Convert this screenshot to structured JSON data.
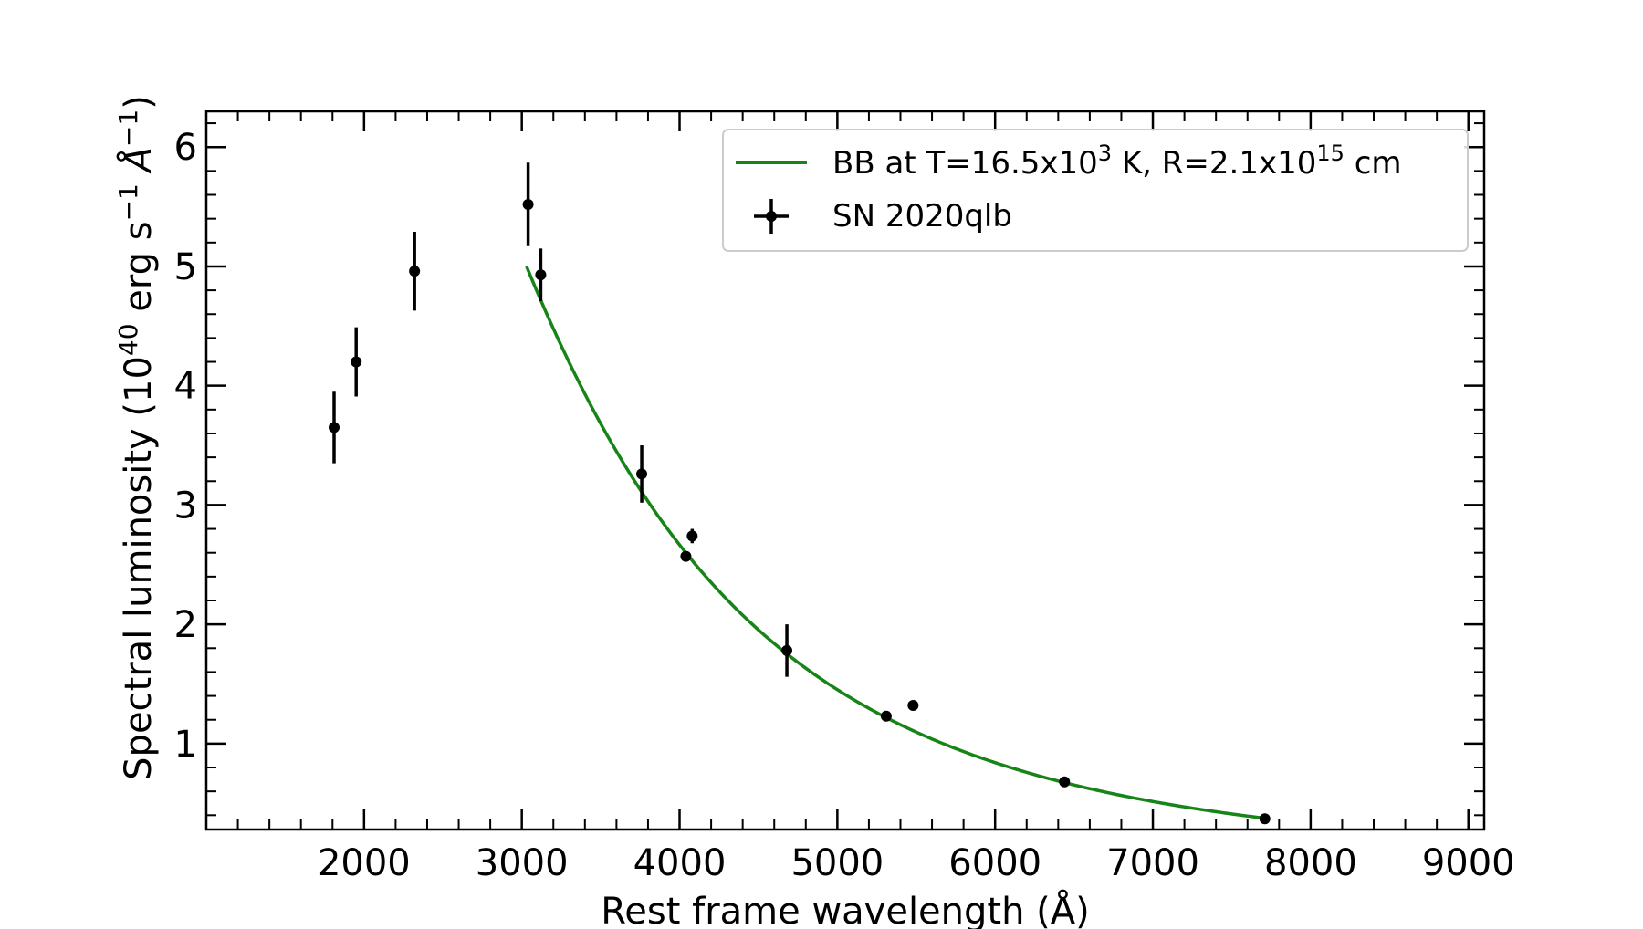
{
  "chart_data": {
    "type": "scatter",
    "xlabel": "Rest frame wavelength (Å)",
    "ylabel_main": "Spectral luminosity (10",
    "ylabel_exp1": "40",
    "ylabel_mid": " erg s",
    "ylabel_exp2": "−1",
    "ylabel_unit": " Å",
    "ylabel_exp3": "−1",
    "ylabel_end": ")",
    "xlim": [
      1000,
      9100
    ],
    "ylim": [
      0.28,
      6.3
    ],
    "xticks": [
      2000,
      3000,
      4000,
      5000,
      6000,
      7000,
      8000,
      9000
    ],
    "xtick_labels": [
      "2000",
      "3000",
      "4000",
      "5000",
      "6000",
      "7000",
      "8000",
      "9000"
    ],
    "yticks": [
      1,
      2,
      3,
      4,
      5,
      6
    ],
    "ytick_labels": [
      "1",
      "2",
      "3",
      "4",
      "5",
      "6"
    ],
    "legend_position": "top-right",
    "series": [
      {
        "name": "SN 2020qlb",
        "kind": "errorbar",
        "color": "#000000",
        "points": [
          {
            "x": 1810,
            "y": 3.65,
            "yerr": 0.3
          },
          {
            "x": 1950,
            "y": 4.2,
            "yerr": 0.29
          },
          {
            "x": 2320,
            "y": 4.96,
            "yerr": 0.33
          },
          {
            "x": 3040,
            "y": 5.52,
            "yerr": 0.35
          },
          {
            "x": 3120,
            "y": 4.93,
            "yerr": 0.22
          },
          {
            "x": 3760,
            "y": 3.26,
            "yerr": 0.24
          },
          {
            "x": 4040,
            "y": 2.57,
            "yerr": 0.0
          },
          {
            "x": 4080,
            "y": 2.74,
            "yerr": 0.06
          },
          {
            "x": 4680,
            "y": 1.78,
            "yerr": 0.22
          },
          {
            "x": 5310,
            "y": 1.23,
            "yerr": 0.0
          },
          {
            "x": 5480,
            "y": 1.32,
            "yerr": 0.0
          },
          {
            "x": 6440,
            "y": 0.68,
            "yerr": 0.0
          },
          {
            "x": 7710,
            "y": 0.37,
            "yerr": 0.0
          }
        ]
      },
      {
        "name": "BB at T=16.5x10",
        "name_sup": "3",
        "name_mid": " K, R=2.1x10",
        "name_sup2": "15",
        "name_end": " cm",
        "kind": "line",
        "color": "#168416",
        "temperature_k": 16500,
        "x_range": [
          3030,
          7710
        ],
        "y_at_start": 5.0
      }
    ]
  }
}
